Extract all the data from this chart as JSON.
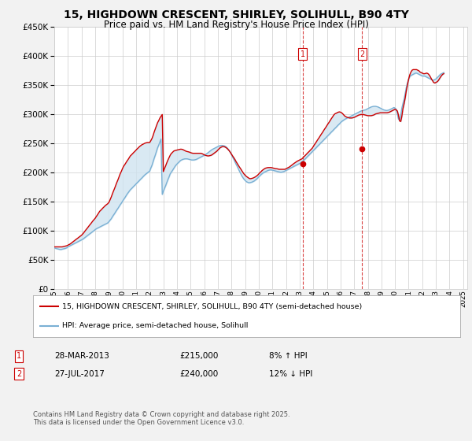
{
  "title_line1": "15, HIGHDOWN CRESCENT, SHIRLEY, SOLIHULL, B90 4TY",
  "title_line2": "Price paid vs. HM Land Registry's House Price Index (HPI)",
  "ytick_values": [
    0,
    50000,
    100000,
    150000,
    200000,
    250000,
    300000,
    350000,
    400000,
    450000
  ],
  "year_start": 1995,
  "year_end": 2025,
  "background_color": "#f2f2f2",
  "plot_bg_color": "#ffffff",
  "grid_color": "#cccccc",
  "red_line_color": "#cc0000",
  "blue_line_color": "#7ab0d4",
  "shade_color": "#d0e4f0",
  "marker1_date": "28-MAR-2013",
  "marker1_value": 215000,
  "marker1_label": "8% ↑ HPI",
  "marker1_year": 2013.23,
  "marker2_date": "27-JUL-2017",
  "marker2_value": 240000,
  "marker2_label": "12% ↓ HPI",
  "marker2_year": 2017.57,
  "legend_line1": "15, HIGHDOWN CRESCENT, SHIRLEY, SOLIHULL, B90 4TY (semi-detached house)",
  "legend_line2": "HPI: Average price, semi-detached house, Solihull",
  "footer": "Contains HM Land Registry data © Crown copyright and database right 2025.\nThis data is licensed under the Open Government Licence v3.0.",
  "hpi_years": [
    1995.0,
    1995.08,
    1995.17,
    1995.25,
    1995.33,
    1995.42,
    1995.5,
    1995.58,
    1995.67,
    1995.75,
    1995.83,
    1995.92,
    1996.0,
    1996.08,
    1996.17,
    1996.25,
    1996.33,
    1996.42,
    1996.5,
    1996.58,
    1996.67,
    1996.75,
    1996.83,
    1996.92,
    1997.0,
    1997.08,
    1997.17,
    1997.25,
    1997.33,
    1997.42,
    1997.5,
    1997.58,
    1997.67,
    1997.75,
    1997.83,
    1997.92,
    1998.0,
    1998.08,
    1998.17,
    1998.25,
    1998.33,
    1998.42,
    1998.5,
    1998.58,
    1998.67,
    1998.75,
    1998.83,
    1998.92,
    1999.0,
    1999.08,
    1999.17,
    1999.25,
    1999.33,
    1999.42,
    1999.5,
    1999.58,
    1999.67,
    1999.75,
    1999.83,
    1999.92,
    2000.0,
    2000.08,
    2000.17,
    2000.25,
    2000.33,
    2000.42,
    2000.5,
    2000.58,
    2000.67,
    2000.75,
    2000.83,
    2000.92,
    2001.0,
    2001.08,
    2001.17,
    2001.25,
    2001.33,
    2001.42,
    2001.5,
    2001.58,
    2001.67,
    2001.75,
    2001.83,
    2001.92,
    2002.0,
    2002.08,
    2002.17,
    2002.25,
    2002.33,
    2002.42,
    2002.5,
    2002.58,
    2002.67,
    2002.75,
    2002.83,
    2002.92,
    2003.0,
    2003.08,
    2003.17,
    2003.25,
    2003.33,
    2003.42,
    2003.5,
    2003.58,
    2003.67,
    2003.75,
    2003.83,
    2003.92,
    2004.0,
    2004.08,
    2004.17,
    2004.25,
    2004.33,
    2004.42,
    2004.5,
    2004.58,
    2004.67,
    2004.75,
    2004.83,
    2004.92,
    2005.0,
    2005.08,
    2005.17,
    2005.25,
    2005.33,
    2005.42,
    2005.5,
    2005.58,
    2005.67,
    2005.75,
    2005.83,
    2005.92,
    2006.0,
    2006.08,
    2006.17,
    2006.25,
    2006.33,
    2006.42,
    2006.5,
    2006.58,
    2006.67,
    2006.75,
    2006.83,
    2006.92,
    2007.0,
    2007.08,
    2007.17,
    2007.25,
    2007.33,
    2007.42,
    2007.5,
    2007.58,
    2007.67,
    2007.75,
    2007.83,
    2007.92,
    2008.0,
    2008.08,
    2008.17,
    2008.25,
    2008.33,
    2008.42,
    2008.5,
    2008.58,
    2008.67,
    2008.75,
    2008.83,
    2008.92,
    2009.0,
    2009.08,
    2009.17,
    2009.25,
    2009.33,
    2009.42,
    2009.5,
    2009.58,
    2009.67,
    2009.75,
    2009.83,
    2009.92,
    2010.0,
    2010.08,
    2010.17,
    2010.25,
    2010.33,
    2010.42,
    2010.5,
    2010.58,
    2010.67,
    2010.75,
    2010.83,
    2010.92,
    2011.0,
    2011.08,
    2011.17,
    2011.25,
    2011.33,
    2011.42,
    2011.5,
    2011.58,
    2011.67,
    2011.75,
    2011.83,
    2011.92,
    2012.0,
    2012.08,
    2012.17,
    2012.25,
    2012.33,
    2012.42,
    2012.5,
    2012.58,
    2012.67,
    2012.75,
    2012.83,
    2012.92,
    2013.0,
    2013.08,
    2013.17,
    2013.25,
    2013.33,
    2013.42,
    2013.5,
    2013.58,
    2013.67,
    2013.75,
    2013.83,
    2013.92,
    2014.0,
    2014.08,
    2014.17,
    2014.25,
    2014.33,
    2014.42,
    2014.5,
    2014.58,
    2014.67,
    2014.75,
    2014.83,
    2014.92,
    2015.0,
    2015.08,
    2015.17,
    2015.25,
    2015.33,
    2015.42,
    2015.5,
    2015.58,
    2015.67,
    2015.75,
    2015.83,
    2015.92,
    2016.0,
    2016.08,
    2016.17,
    2016.25,
    2016.33,
    2016.42,
    2016.5,
    2016.58,
    2016.67,
    2016.75,
    2016.83,
    2016.92,
    2017.0,
    2017.08,
    2017.17,
    2017.25,
    2017.33,
    2017.42,
    2017.5,
    2017.58,
    2017.67,
    2017.75,
    2017.83,
    2017.92,
    2018.0,
    2018.08,
    2018.17,
    2018.25,
    2018.33,
    2018.42,
    2018.5,
    2018.58,
    2018.67,
    2018.75,
    2018.83,
    2018.92,
    2019.0,
    2019.08,
    2019.17,
    2019.25,
    2019.33,
    2019.42,
    2019.5,
    2019.58,
    2019.67,
    2019.75,
    2019.83,
    2019.92,
    2020.0,
    2020.08,
    2020.17,
    2020.25,
    2020.33,
    2020.42,
    2020.5,
    2020.58,
    2020.67,
    2020.75,
    2020.83,
    2020.92,
    2021.0,
    2021.08,
    2021.17,
    2021.25,
    2021.33,
    2021.42,
    2021.5,
    2021.58,
    2021.67,
    2021.75,
    2021.83,
    2021.92,
    2022.0,
    2022.08,
    2022.17,
    2022.25,
    2022.33,
    2022.42,
    2022.5,
    2022.58,
    2022.67,
    2022.75,
    2022.83,
    2022.92,
    2023.0,
    2023.08,
    2023.17,
    2023.25,
    2023.33,
    2023.42,
    2023.5,
    2023.58,
    2023.67,
    2023.75,
    2023.83,
    2023.92,
    2024.0,
    2024.08,
    2024.17,
    2024.25,
    2024.33,
    2024.42,
    2024.5,
    2024.58,
    2024.67,
    2024.75,
    2024.83,
    2024.92,
    2025.0
  ],
  "hpi_values": [
    70000,
    69500,
    69000,
    68500,
    68000,
    67500,
    67500,
    68000,
    68500,
    69000,
    69500,
    70500,
    72000,
    73000,
    74000,
    75000,
    76000,
    77000,
    78000,
    79000,
    80000,
    81000,
    82000,
    83000,
    84000,
    85000,
    86500,
    88000,
    89500,
    91000,
    92500,
    94000,
    95500,
    97000,
    98500,
    100000,
    101500,
    103000,
    104000,
    105000,
    106000,
    107000,
    108000,
    109000,
    110000,
    111000,
    112000,
    113000,
    115000,
    117500,
    120000,
    123000,
    126000,
    129000,
    132000,
    135000,
    138000,
    141000,
    144000,
    147000,
    150000,
    153000,
    156000,
    159000,
    162000,
    165000,
    167500,
    170000,
    172000,
    174000,
    176000,
    178000,
    180000,
    182000,
    184000,
    186000,
    188000,
    190000,
    192000,
    194000,
    196000,
    197500,
    199000,
    200500,
    202000,
    207000,
    212000,
    218000,
    224000,
    230000,
    236000,
    242000,
    247000,
    252000,
    257000,
    162000,
    167000,
    172000,
    177000,
    182000,
    187000,
    192000,
    197000,
    200000,
    203000,
    206000,
    209000,
    212000,
    214000,
    216000,
    218000,
    220000,
    221000,
    222000,
    222500,
    223000,
    223000,
    223000,
    222500,
    222000,
    221500,
    221000,
    221000,
    221000,
    221500,
    222000,
    223000,
    224000,
    225000,
    226000,
    227000,
    228000,
    229000,
    230000,
    231500,
    233000,
    234500,
    236000,
    237500,
    239000,
    240000,
    241000,
    242000,
    243000,
    244000,
    245000,
    245500,
    246000,
    246000,
    245500,
    245000,
    244000,
    242000,
    240000,
    237000,
    234000,
    230000,
    226000,
    222000,
    218000,
    214000,
    210000,
    206000,
    202000,
    198000,
    194000,
    191000,
    188000,
    186000,
    184000,
    183000,
    182000,
    182000,
    182500,
    183000,
    184000,
    185000,
    186500,
    188000,
    190000,
    192000,
    194000,
    196000,
    197500,
    199000,
    200000,
    201000,
    202000,
    203000,
    203500,
    204000,
    204000,
    203500,
    203000,
    202500,
    202000,
    201500,
    201000,
    200500,
    200000,
    200000,
    200500,
    201000,
    202000,
    203000,
    204000,
    205000,
    206000,
    207000,
    208000,
    209000,
    210000,
    211000,
    212000,
    213000,
    214000,
    215000,
    216000,
    217500,
    219000,
    221000,
    223000,
    225000,
    227000,
    229000,
    231000,
    233000,
    235000,
    237000,
    239000,
    241000,
    243000,
    245000,
    247000,
    249000,
    251000,
    253000,
    255000,
    257000,
    259000,
    261000,
    263000,
    265000,
    267000,
    269000,
    271000,
    273000,
    275000,
    277000,
    279000,
    281000,
    283000,
    285000,
    287000,
    288500,
    290000,
    291000,
    292000,
    293000,
    294000,
    295000,
    296000,
    297000,
    298000,
    299000,
    300000,
    301000,
    302000,
    303000,
    304000,
    305000,
    305500,
    306000,
    306500,
    307000,
    308000,
    309000,
    310000,
    311000,
    312000,
    312500,
    313000,
    313000,
    313000,
    312500,
    312000,
    311000,
    310000,
    309000,
    308000,
    307000,
    306500,
    306000,
    306000,
    306500,
    307000,
    308000,
    309000,
    310000,
    311000,
    310000,
    308000,
    300000,
    291000,
    290000,
    298000,
    310000,
    318000,
    326000,
    336000,
    346000,
    354000,
    360000,
    364000,
    366000,
    367000,
    368000,
    369000,
    370000,
    370000,
    369000,
    368000,
    367000,
    366000,
    365000,
    365000,
    365000,
    364000,
    363000,
    362000,
    361000,
    360000,
    359000,
    358000,
    358000,
    359000,
    360000,
    362000,
    364000,
    366000,
    368000,
    369000,
    370000,
    371000
  ],
  "price_years": [
    1995.0,
    1995.08,
    1995.17,
    1995.25,
    1995.33,
    1995.42,
    1995.5,
    1995.58,
    1995.67,
    1995.75,
    1995.83,
    1995.92,
    1996.0,
    1996.08,
    1996.17,
    1996.25,
    1996.33,
    1996.42,
    1996.5,
    1996.58,
    1996.67,
    1996.75,
    1996.83,
    1996.92,
    1997.0,
    1997.08,
    1997.17,
    1997.25,
    1997.33,
    1997.42,
    1997.5,
    1997.58,
    1997.67,
    1997.75,
    1997.83,
    1997.92,
    1998.0,
    1998.08,
    1998.17,
    1998.25,
    1998.33,
    1998.42,
    1998.5,
    1998.58,
    1998.67,
    1998.75,
    1998.83,
    1998.92,
    1999.0,
    1999.08,
    1999.17,
    1999.25,
    1999.33,
    1999.42,
    1999.5,
    1999.58,
    1999.67,
    1999.75,
    1999.83,
    1999.92,
    2000.0,
    2000.08,
    2000.17,
    2000.25,
    2000.33,
    2000.42,
    2000.5,
    2000.58,
    2000.67,
    2000.75,
    2000.83,
    2000.92,
    2001.0,
    2001.08,
    2001.17,
    2001.25,
    2001.33,
    2001.42,
    2001.5,
    2001.58,
    2001.67,
    2001.75,
    2001.83,
    2001.92,
    2002.0,
    2002.08,
    2002.17,
    2002.25,
    2002.33,
    2002.42,
    2002.5,
    2002.58,
    2002.67,
    2002.75,
    2002.83,
    2002.92,
    2003.0,
    2003.08,
    2003.17,
    2003.25,
    2003.33,
    2003.42,
    2003.5,
    2003.58,
    2003.67,
    2003.75,
    2003.83,
    2003.92,
    2004.0,
    2004.08,
    2004.17,
    2004.25,
    2004.33,
    2004.42,
    2004.5,
    2004.58,
    2004.67,
    2004.75,
    2004.83,
    2004.92,
    2005.0,
    2005.08,
    2005.17,
    2005.25,
    2005.33,
    2005.42,
    2005.5,
    2005.58,
    2005.67,
    2005.75,
    2005.83,
    2005.92,
    2006.0,
    2006.08,
    2006.17,
    2006.25,
    2006.33,
    2006.42,
    2006.5,
    2006.58,
    2006.67,
    2006.75,
    2006.83,
    2006.92,
    2007.0,
    2007.08,
    2007.17,
    2007.25,
    2007.33,
    2007.42,
    2007.5,
    2007.58,
    2007.67,
    2007.75,
    2007.83,
    2007.92,
    2008.0,
    2008.08,
    2008.17,
    2008.25,
    2008.33,
    2008.42,
    2008.5,
    2008.58,
    2008.67,
    2008.75,
    2008.83,
    2008.92,
    2009.0,
    2009.08,
    2009.17,
    2009.25,
    2009.33,
    2009.42,
    2009.5,
    2009.58,
    2009.67,
    2009.75,
    2009.83,
    2009.92,
    2010.0,
    2010.08,
    2010.17,
    2010.25,
    2010.33,
    2010.42,
    2010.5,
    2010.58,
    2010.67,
    2010.75,
    2010.83,
    2010.92,
    2011.0,
    2011.08,
    2011.17,
    2011.25,
    2011.33,
    2011.42,
    2011.5,
    2011.58,
    2011.67,
    2011.75,
    2011.83,
    2011.92,
    2012.0,
    2012.08,
    2012.17,
    2012.25,
    2012.33,
    2012.42,
    2012.5,
    2012.58,
    2012.67,
    2012.75,
    2012.83,
    2012.92,
    2013.0,
    2013.08,
    2013.17,
    2013.25,
    2013.33,
    2013.42,
    2013.5,
    2013.58,
    2013.67,
    2013.75,
    2013.83,
    2013.92,
    2014.0,
    2014.08,
    2014.17,
    2014.25,
    2014.33,
    2014.42,
    2014.5,
    2014.58,
    2014.67,
    2014.75,
    2014.83,
    2014.92,
    2015.0,
    2015.08,
    2015.17,
    2015.25,
    2015.33,
    2015.42,
    2015.5,
    2015.58,
    2015.67,
    2015.75,
    2015.83,
    2015.92,
    2016.0,
    2016.08,
    2016.17,
    2016.25,
    2016.33,
    2016.42,
    2016.5,
    2016.58,
    2016.67,
    2016.75,
    2016.83,
    2016.92,
    2017.0,
    2017.08,
    2017.17,
    2017.25,
    2017.33,
    2017.42,
    2017.5,
    2017.58,
    2017.67,
    2017.75,
    2017.83,
    2017.92,
    2018.0,
    2018.08,
    2018.17,
    2018.25,
    2018.33,
    2018.42,
    2018.5,
    2018.58,
    2018.67,
    2018.75,
    2018.83,
    2018.92,
    2019.0,
    2019.08,
    2019.17,
    2019.25,
    2019.33,
    2019.42,
    2019.5,
    2019.58,
    2019.67,
    2019.75,
    2019.83,
    2019.92,
    2020.0,
    2020.08,
    2020.17,
    2020.25,
    2020.33,
    2020.42,
    2020.5,
    2020.58,
    2020.67,
    2020.75,
    2020.83,
    2020.92,
    2021.0,
    2021.08,
    2021.17,
    2021.25,
    2021.33,
    2021.42,
    2021.5,
    2021.58,
    2021.67,
    2021.75,
    2021.83,
    2021.92,
    2022.0,
    2022.08,
    2022.17,
    2022.25,
    2022.33,
    2022.42,
    2022.5,
    2022.58,
    2022.67,
    2022.75,
    2022.83,
    2022.92,
    2023.0,
    2023.08,
    2023.17,
    2023.25,
    2023.33,
    2023.42,
    2023.5,
    2023.58,
    2023.67,
    2023.75,
    2023.83,
    2023.92,
    2024.0,
    2024.08,
    2024.17,
    2024.25,
    2024.33,
    2024.42,
    2024.5,
    2024.58,
    2024.67,
    2024.75,
    2024.83,
    2024.92,
    2025.0
  ],
  "price_values": [
    72000,
    72000,
    72000,
    72000,
    72000,
    72000,
    72000,
    72000,
    72500,
    73000,
    73500,
    74000,
    75000,
    76000,
    77000,
    78500,
    80000,
    81500,
    83000,
    84500,
    86000,
    87500,
    89000,
    90500,
    92000,
    94000,
    96500,
    99000,
    101500,
    104000,
    106500,
    109000,
    111500,
    114000,
    116500,
    119000,
    121000,
    124000,
    127000,
    130000,
    133000,
    135000,
    137000,
    139000,
    141000,
    143000,
    144500,
    146000,
    148000,
    152000,
    157000,
    162000,
    167000,
    172000,
    177000,
    182000,
    187000,
    192000,
    197000,
    201500,
    206000,
    210000,
    213000,
    216000,
    219000,
    222000,
    225000,
    228000,
    230000,
    232000,
    234000,
    236000,
    238000,
    240000,
    242000,
    244000,
    245500,
    247000,
    248000,
    249000,
    250000,
    250500,
    251000,
    251000,
    251000,
    254000,
    258000,
    263000,
    269000,
    275000,
    280000,
    285000,
    289000,
    293000,
    296000,
    299000,
    201000,
    206000,
    211000,
    216000,
    220500,
    225000,
    229000,
    232000,
    234000,
    236000,
    237000,
    237500,
    238000,
    238500,
    239000,
    239500,
    239500,
    239000,
    238000,
    237000,
    236000,
    235500,
    235000,
    234500,
    233500,
    233000,
    232500,
    232500,
    232500,
    232500,
    232500,
    232500,
    232500,
    232500,
    232000,
    231000,
    230000,
    229000,
    228500,
    228000,
    228000,
    228500,
    229000,
    230000,
    231500,
    233000,
    234500,
    236000,
    238000,
    240000,
    242000,
    243000,
    244000,
    244000,
    243500,
    242500,
    241000,
    239000,
    237000,
    234000,
    231000,
    228000,
    225000,
    222000,
    218500,
    215000,
    212000,
    209000,
    206000,
    203000,
    200000,
    197000,
    195000,
    193000,
    191500,
    190000,
    189000,
    189000,
    189500,
    190000,
    191000,
    192000,
    193500,
    195000,
    197000,
    199000,
    201000,
    203000,
    204500,
    206000,
    207000,
    207500,
    208000,
    208000,
    208000,
    208000,
    207500,
    207000,
    206500,
    206000,
    206000,
    205500,
    205000,
    205000,
    205000,
    205000,
    205000,
    205000,
    206000,
    207000,
    208000,
    209000,
    210500,
    212000,
    213500,
    215000,
    216500,
    218000,
    219000,
    220000,
    221000,
    222000,
    223000,
    225000,
    227000,
    229000,
    231000,
    233000,
    235000,
    237000,
    239000,
    241000,
    244000,
    247000,
    250000,
    253000,
    256000,
    259000,
    262000,
    265000,
    268000,
    271000,
    274000,
    277000,
    280000,
    283000,
    286000,
    289000,
    292000,
    295000,
    298000,
    300000,
    301000,
    302000,
    303000,
    303500,
    303000,
    302000,
    300000,
    298000,
    296000,
    295000,
    294000,
    293500,
    293000,
    293000,
    293000,
    293500,
    294000,
    295000,
    296000,
    297000,
    298000,
    298500,
    299000,
    299000,
    299000,
    298500,
    298000,
    297500,
    297000,
    297000,
    297000,
    297000,
    297500,
    298000,
    299000,
    300000,
    300500,
    301000,
    301500,
    302000,
    302000,
    302000,
    302000,
    302000,
    302000,
    302000,
    302500,
    303000,
    304000,
    305000,
    306000,
    307000,
    308000,
    307000,
    305000,
    298000,
    288000,
    287000,
    296000,
    309000,
    318000,
    328000,
    340000,
    351000,
    360000,
    367000,
    372000,
    375000,
    376000,
    376000,
    376000,
    376000,
    375000,
    374000,
    372000,
    371000,
    370000,
    369000,
    369000,
    369500,
    370000,
    369000,
    367000,
    364000,
    360000,
    357000,
    354000,
    353000,
    354000,
    355000,
    357000,
    360000,
    363000,
    366000,
    368000,
    369000,
    370000
  ]
}
